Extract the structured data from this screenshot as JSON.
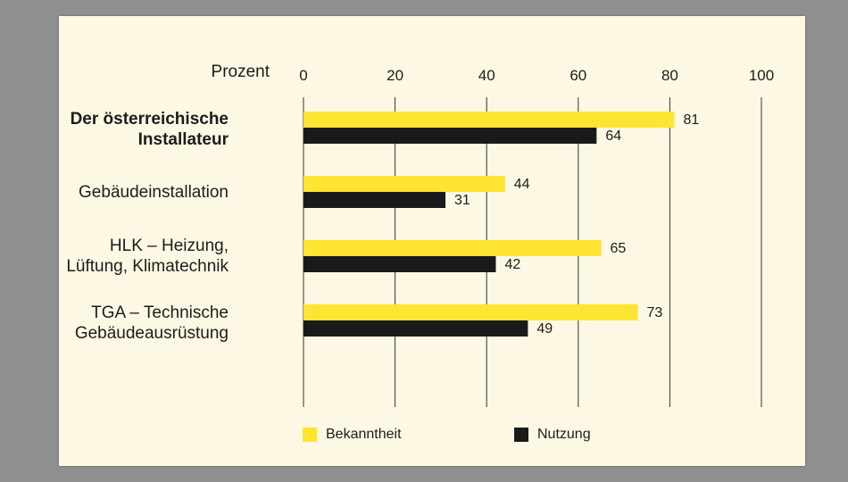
{
  "chart_data": {
    "type": "bar",
    "orientation": "horizontal",
    "unit_label": "Prozent",
    "x_ticks": [
      "0",
      "20",
      "40",
      "60",
      "80",
      "100"
    ],
    "xlim": [
      0,
      100
    ],
    "grid": true,
    "legend_position": "bottom",
    "categories": [
      {
        "label": "Der österreichische Installateur",
        "bold": true
      },
      {
        "label": "Gebäudeinstallation",
        "bold": false
      },
      {
        "label": "HLK – Heizung, Lüftung, Klimatechnik",
        "bold": false
      },
      {
        "label": "TGA – Technische Gebäudeausrüstung",
        "bold": false
      }
    ],
    "series": [
      {
        "name": "Bekanntheit",
        "color": "#ffe433",
        "values": [
          81,
          44,
          65,
          73
        ]
      },
      {
        "name": "Nutzung",
        "color": "#1a1a1a",
        "values": [
          64,
          31,
          42,
          49
        ]
      }
    ]
  },
  "category_lines": [
    [
      "Der österreichische",
      "Installateur"
    ],
    [
      "Gebäudeinstallation"
    ],
    [
      "HLK – Heizung,",
      "Lüftung, Klimatechnik"
    ],
    [
      "TGA – Technische",
      "Gebäudeausrüstung"
    ]
  ],
  "background_color": "#fcf8e3"
}
